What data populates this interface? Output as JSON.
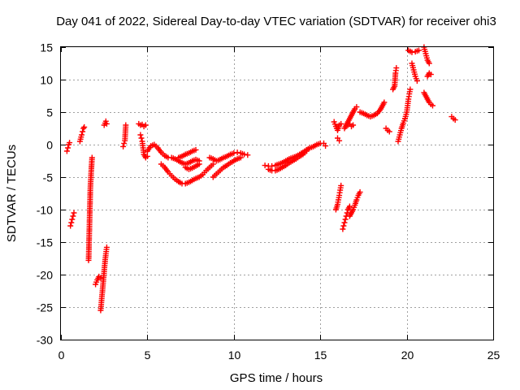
{
  "chart_data": {
    "type": "scatter",
    "title": "Day 041 of 2022, Sidereal Day-to-day VTEC variation (SDTVAR) for receiver ohi3",
    "xlabel": "GPS time / hours",
    "ylabel": "SDTVAR / TECUs",
    "xlim": [
      0,
      25
    ],
    "ylim": [
      -30,
      15
    ],
    "xticks": [
      0,
      5,
      10,
      15,
      20,
      25
    ],
    "yticks": [
      -30,
      -25,
      -20,
      -15,
      -10,
      -5,
      0,
      5,
      10,
      15
    ],
    "grid": true,
    "marker": "+",
    "marker_color": "#ff0000",
    "series": [
      {
        "name": "SDTVAR",
        "segments": [
          {
            "x": [
              0.35,
              0.4,
              0.45,
              0.5
            ],
            "y": [
              -1.0,
              -0.5,
              0.0,
              0.3
            ]
          },
          {
            "x": [
              0.55,
              0.6,
              0.65,
              0.7,
              0.75
            ],
            "y": [
              -12.5,
              -12.0,
              -11.5,
              -11.0,
              -10.5
            ]
          },
          {
            "x": [
              1.1,
              1.2,
              1.25,
              1.3,
              1.35
            ],
            "y": [
              0.5,
              1.5,
              2.0,
              2.5,
              2.7
            ]
          },
          {
            "x": [
              1.6,
              1.7,
              1.75,
              1.8
            ],
            "y": [
              -17.8,
              -6.8,
              -4.2,
              -2.0
            ]
          },
          {
            "x": [
              2.0,
              2.1,
              2.2,
              2.3
            ],
            "y": [
              -21.5,
              -20.8,
              -20.3,
              -20.5
            ]
          },
          {
            "x": [
              2.3,
              2.35,
              2.4,
              2.45,
              2.5,
              2.55,
              2.6,
              2.65
            ],
            "y": [
              -25.5,
              -24.0,
              -22.5,
              -21.0,
              -19.5,
              -18.0,
              -16.8,
              -15.8
            ]
          },
          {
            "x": [
              2.5,
              2.55,
              2.6,
              2.65
            ],
            "y": [
              3.0,
              3.3,
              3.6,
              3.2
            ]
          },
          {
            "x": [
              3.6,
              3.65,
              3.7,
              3.75
            ],
            "y": [
              -0.3,
              0.2,
              0.6,
              3.0
            ]
          },
          {
            "x": [
              4.5,
              4.6,
              4.7,
              4.8,
              4.9
            ],
            "y": [
              3.2,
              3.0,
              3.1,
              2.8,
              3.0
            ]
          },
          {
            "x": [
              4.6,
              4.65,
              4.7,
              4.75,
              4.8,
              4.9,
              5.0
            ],
            "y": [
              1.5,
              1.0,
              0.5,
              -0.5,
              -1.5,
              -2.0,
              -1.8
            ]
          },
          {
            "x": [
              5.0,
              5.2,
              5.4,
              5.6,
              5.8,
              6.0,
              6.2,
              6.4,
              6.6,
              6.8,
              7.0,
              7.2,
              7.4,
              7.6,
              7.8,
              8.0
            ],
            "y": [
              -1.0,
              -0.2,
              0.0,
              -0.5,
              -1.2,
              -1.7,
              -2.0,
              -2.0,
              -2.2,
              -2.5,
              -2.8,
              -3.0,
              -2.8,
              -2.5,
              -2.3,
              -2.5
            ]
          },
          {
            "x": [
              5.8,
              6.0,
              6.2,
              6.4,
              6.6,
              6.8,
              7.0,
              7.2,
              7.4,
              7.6,
              7.8,
              8.0,
              8.2,
              8.4,
              8.6,
              8.8
            ],
            "y": [
              -3.0,
              -3.5,
              -4.2,
              -4.8,
              -5.3,
              -5.7,
              -6.0,
              -6.0,
              -5.8,
              -5.5,
              -5.2,
              -5.0,
              -4.6,
              -4.0,
              -3.5,
              -3.0
            ]
          },
          {
            "x": [
              6.8,
              7.0,
              7.2,
              7.4,
              7.6,
              7.8
            ],
            "y": [
              -2.0,
              -1.8,
              -1.5,
              -1.3,
              -1.0,
              -0.8
            ]
          },
          {
            "x": [
              7.2,
              7.4,
              7.6,
              7.8,
              8.0
            ],
            "y": [
              -3.5,
              -3.8,
              -3.6,
              -3.3,
              -3.0
            ]
          },
          {
            "x": [
              8.6,
              8.8,
              9.0,
              9.2,
              9.4,
              9.6,
              9.8,
              10.0,
              10.2,
              10.4,
              10.6,
              10.8
            ],
            "y": [
              -2.0,
              -2.2,
              -2.5,
              -2.3,
              -2.0,
              -1.8,
              -1.5,
              -1.3,
              -1.2,
              -1.3,
              -1.5,
              -1.6
            ]
          },
          {
            "x": [
              8.8,
              9.0,
              9.2,
              9.4,
              9.6,
              9.8,
              10.0,
              10.2,
              10.4
            ],
            "y": [
              -5.0,
              -4.5,
              -4.0,
              -3.5,
              -3.2,
              -2.8,
              -2.5,
              -2.2,
              -2.0
            ]
          },
          {
            "x": [
              11.8,
              12.0,
              12.2,
              12.4,
              12.6,
              12.8,
              13.0,
              13.2,
              13.4,
              13.6,
              13.8,
              14.0,
              14.2,
              14.4,
              14.6,
              14.8,
              15.0
            ],
            "y": [
              -3.2,
              -3.3,
              -3.3,
              -3.2,
              -3.0,
              -2.8,
              -2.5,
              -2.2,
              -2.0,
              -1.8,
              -1.5,
              -1.2,
              -0.8,
              -0.5,
              -0.3,
              0.0,
              0.2
            ]
          },
          {
            "x": [
              12.0,
              12.2,
              12.4,
              12.6,
              12.8,
              13.0,
              13.2,
              13.4,
              13.6,
              13.8,
              14.0,
              14.2
            ],
            "y": [
              -3.8,
              -4.0,
              -4.0,
              -3.8,
              -3.5,
              -3.2,
              -2.8,
              -2.5,
              -2.2,
              -1.8,
              -1.5,
              -1.0
            ]
          },
          {
            "x": [
              15.2,
              15.3
            ],
            "y": [
              0.2,
              -0.2
            ]
          },
          {
            "x": [
              15.8,
              15.9,
              16.0,
              16.1,
              16.2
            ],
            "y": [
              3.5,
              2.8,
              2.2,
              3.0,
              3.2
            ]
          },
          {
            "x": [
              16.0,
              16.1
            ],
            "y": [
              1.0,
              0.6
            ]
          },
          {
            "x": [
              15.9,
              16.0,
              16.05,
              16.1,
              16.15,
              16.2
            ],
            "y": [
              -10.0,
              -9.2,
              -8.5,
              -7.8,
              -7.0,
              -6.3
            ]
          },
          {
            "x": [
              16.3,
              16.35,
              16.4,
              16.45,
              16.5,
              16.55,
              16.6,
              16.7
            ],
            "y": [
              -13.0,
              -12.5,
              -12.0,
              -11.5,
              -11.0,
              -10.5,
              -10.0,
              -9.5
            ]
          },
          {
            "x": [
              16.7,
              16.8,
              16.9,
              17.0,
              17.1,
              17.2,
              17.3
            ],
            "y": [
              -11.0,
              -10.5,
              -10.0,
              -9.3,
              -8.5,
              -7.8,
              -7.3
            ]
          },
          {
            "x": [
              16.4,
              16.5,
              16.6,
              16.7,
              16.8,
              16.9,
              17.0,
              17.1
            ],
            "y": [
              2.5,
              3.0,
              3.5,
              4.0,
              4.5,
              5.0,
              5.5,
              5.8
            ]
          },
          {
            "x": [
              16.6,
              16.7,
              16.8,
              16.9
            ],
            "y": [
              3.0,
              3.2,
              2.8,
              3.0
            ]
          },
          {
            "x": [
              17.3,
              17.5,
              17.7,
              17.9,
              18.1,
              18.3,
              18.5,
              18.7
            ],
            "y": [
              5.0,
              4.8,
              4.5,
              4.3,
              4.5,
              4.8,
              5.5,
              6.5
            ]
          },
          {
            "x": [
              18.8,
              18.9,
              19.0
            ],
            "y": [
              2.5,
              2.2,
              2.0
            ]
          },
          {
            "x": [
              19.2,
              19.3,
              19.35,
              19.4
            ],
            "y": [
              8.5,
              9.0,
              11.0,
              11.8
            ]
          },
          {
            "x": [
              19.5,
              19.6,
              19.7,
              19.8,
              19.9
            ],
            "y": [
              0.5,
              1.5,
              2.5,
              3.3,
              4.0
            ]
          },
          {
            "x": [
              19.9,
              20.0,
              20.05,
              20.1,
              20.15,
              20.2
            ],
            "y": [
              4.0,
              5.0,
              6.0,
              7.0,
              7.8,
              8.5
            ]
          },
          {
            "x": [
              20.1,
              20.3,
              20.5,
              20.7
            ],
            "y": [
              14.5,
              14.2,
              14.3,
              14.5
            ]
          },
          {
            "x": [
              20.3,
              20.4,
              20.5,
              20.6
            ],
            "y": [
              12.5,
              11.5,
              10.5,
              9.8
            ]
          },
          {
            "x": [
              21.0,
              21.1,
              21.2,
              21.3
            ],
            "y": [
              15.0,
              14.0,
              13.0,
              12.5
            ]
          },
          {
            "x": [
              21.0,
              21.1,
              21.2,
              21.3,
              21.4,
              21.5
            ],
            "y": [
              8.0,
              7.5,
              7.0,
              6.5,
              6.2,
              6.0
            ]
          },
          {
            "x": [
              21.2,
              21.3,
              21.4
            ],
            "y": [
              10.5,
              11.0,
              10.8
            ]
          },
          {
            "x": [
              22.6,
              22.7,
              22.8
            ],
            "y": [
              4.3,
              4.0,
              3.8
            ]
          }
        ]
      }
    ]
  }
}
